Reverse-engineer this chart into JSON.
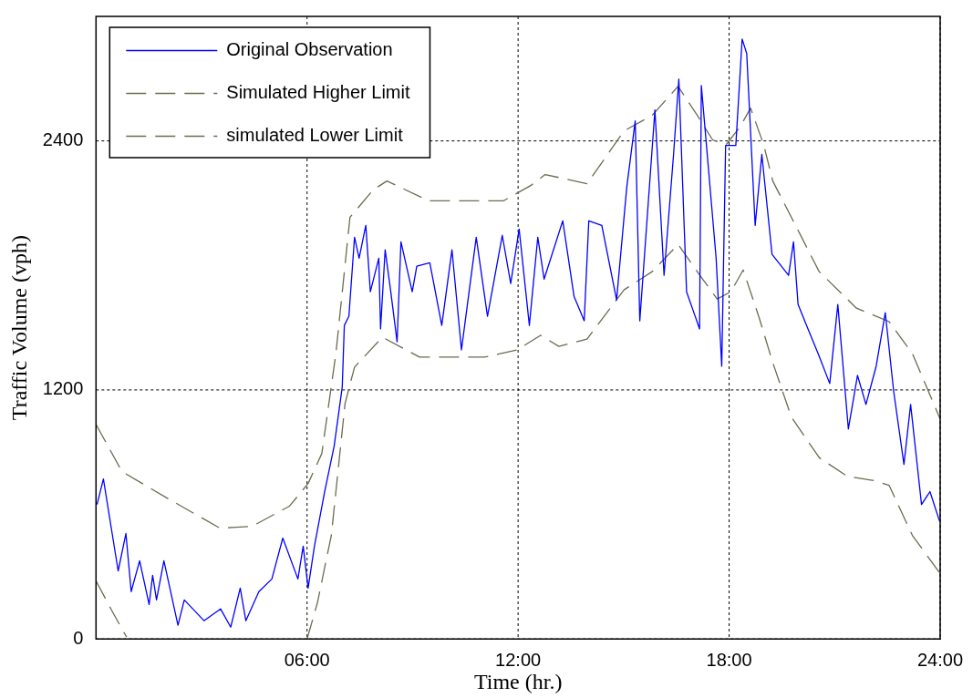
{
  "chart_data": {
    "type": "line",
    "xlabel": "Time (hr.)",
    "ylabel": "Traffic Volume (vph)",
    "xlim": [
      0,
      24
    ],
    "xticks": [
      {
        "value": 6,
        "label": "06:00"
      },
      {
        "value": 12,
        "label": "12:00"
      },
      {
        "value": 18,
        "label": "18:00"
      },
      {
        "value": 24,
        "label": "24:00"
      }
    ],
    "ylim": [
      0,
      3000
    ],
    "yticks": [
      0,
      1200,
      2400
    ],
    "grid": true,
    "legend": "top left",
    "series": [
      {
        "name": "Original Observation",
        "color": "#0000ff",
        "line_style": "solid",
        "x": [
          0.03,
          0.21,
          0.63,
          0.85,
          1.0,
          1.24,
          1.51,
          1.61,
          1.72,
          1.93,
          2.33,
          2.51,
          3.07,
          3.54,
          3.83,
          4.1,
          4.26,
          4.63,
          5.0,
          5.31,
          5.74,
          5.89,
          6.03,
          6.21,
          6.5,
          6.77,
          7.0,
          7.06,
          7.19,
          7.35,
          7.48,
          7.67,
          7.8,
          8.04,
          8.09,
          8.22,
          8.38,
          8.56,
          8.67,
          8.99,
          9.12,
          9.49,
          9.83,
          10.12,
          10.39,
          10.81,
          11.13,
          11.55,
          11.79,
          12.03,
          12.32,
          12.56,
          12.74,
          13.27,
          13.59,
          13.88,
          14.01,
          14.38,
          14.8,
          15.09,
          15.33,
          15.46,
          15.89,
          16.15,
          16.42,
          16.57,
          16.79,
          17.16,
          17.21,
          17.63,
          17.79,
          17.9,
          18.19,
          18.37,
          18.5,
          18.74,
          18.93,
          19.22,
          19.69,
          19.83,
          19.96,
          20.2,
          20.54,
          20.86,
          21.09,
          21.39,
          21.65,
          21.89,
          22.18,
          22.44,
          22.68,
          22.97,
          23.16,
          23.47,
          23.71,
          23.98
        ],
        "values": [
          648,
          771,
          328,
          508,
          228,
          377,
          166,
          307,
          188,
          377,
          66,
          188,
          88,
          145,
          57,
          245,
          88,
          228,
          289,
          486,
          289,
          447,
          245,
          447,
          710,
          929,
          1213,
          1511,
          1555,
          1936,
          1835,
          1993,
          1673,
          1835,
          1494,
          1875,
          1673,
          1432,
          1914,
          1673,
          1796,
          1813,
          1511,
          1875,
          1393,
          1936,
          1555,
          1945,
          1713,
          1975,
          1511,
          1936,
          1734,
          2015,
          1651,
          1533,
          2015,
          1993,
          1634,
          2177,
          2497,
          1533,
          2549,
          1752,
          2335,
          2698,
          1673,
          1494,
          2667,
          1835,
          1314,
          2378,
          2378,
          2891,
          2821,
          1993,
          2335,
          1853,
          1752,
          1914,
          1612,
          1511,
          1371,
          1231,
          1612,
          1012,
          1270,
          1130,
          1314,
          1572,
          1191,
          841,
          1130,
          648,
          710,
          569
        ]
      },
      {
        "name": "Simulated Higher Limit",
        "color": "#6b6b50",
        "line_style": "dashed",
        "x": [
          0,
          0.74,
          2.06,
          3.52,
          4.44,
          5.5,
          6.03,
          6.42,
          6.82,
          7.22,
          7.88,
          8.27,
          9.46,
          11.58,
          12.37,
          12.77,
          13.96,
          15.01,
          15.81,
          16.55,
          17.13,
          17.53,
          17.92,
          18.32,
          18.61,
          18.98,
          19.24,
          19.77,
          20.56,
          21.62,
          22.55,
          23.21,
          24
        ],
        "values": [
          1034,
          806,
          675,
          534,
          543,
          640,
          749,
          894,
          1375,
          2032,
          2164,
          2207,
          2111,
          2111,
          2186,
          2238,
          2194,
          2448,
          2523,
          2663,
          2514,
          2405,
          2383,
          2470,
          2558,
          2383,
          2207,
          2032,
          1770,
          1594,
          1529,
          1375,
          1060
        ]
      },
      {
        "name": "simulated Lower Limit",
        "color": "#6b6b50",
        "line_style": "dashed",
        "x": [
          0,
          0.48,
          0.87,
          3,
          6.0,
          6.29,
          6.69,
          7.08,
          7.35,
          8.14,
          9.2,
          9.99,
          11.05,
          11.97,
          12.64,
          13.16,
          13.96,
          15.01,
          15.81,
          16.55,
          17.13,
          17.66,
          18.05,
          18.4,
          18.85,
          19.24,
          19.77,
          20.57,
          21.36,
          22.15,
          22.55,
          23.21,
          24
        ],
        "values": [
          280,
          127,
          9,
          null,
          0,
          171,
          499,
          1134,
          1310,
          1454,
          1358,
          1358,
          1358,
          1393,
          1463,
          1410,
          1445,
          1682,
          1770,
          1901,
          1761,
          1638,
          1673,
          1778,
          1550,
          1332,
          1069,
          872,
          784,
          762,
          740,
          499,
          315
        ]
      }
    ]
  }
}
